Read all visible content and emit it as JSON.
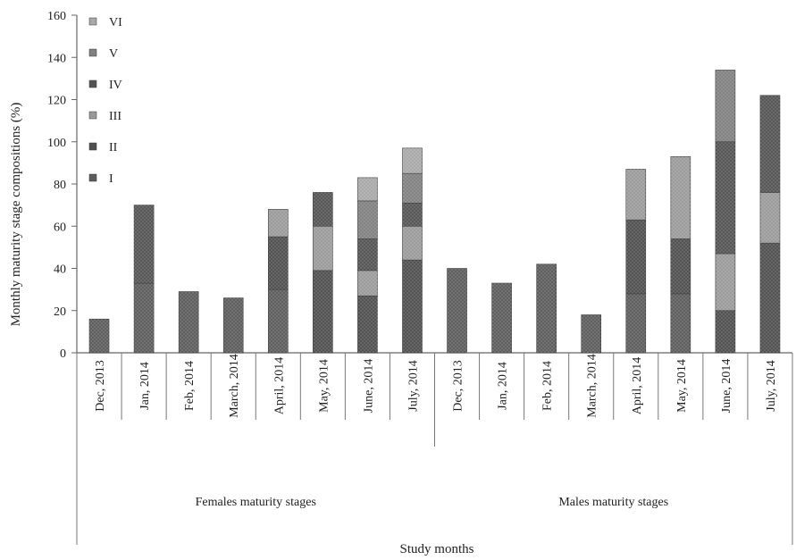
{
  "chart_data": {
    "type": "bar",
    "stacked": true,
    "ylabel": "Monthly maturity stage compositions (%)",
    "xlabel": "Study months",
    "ylim": [
      0,
      160
    ],
    "yticks": [
      0,
      20,
      40,
      60,
      80,
      100,
      120,
      140,
      160
    ],
    "legend_position": "top-left",
    "legend": [
      "VI",
      "V",
      "IV",
      "III",
      "II",
      "I"
    ],
    "groups": [
      {
        "label": "Females maturity stages",
        "categories": [
          "Dec, 2013",
          "Jan, 2014",
          "Feb, 2014",
          "March, 2014",
          "April, 2014",
          "May, 2014",
          "June, 2014",
          "July, 2014"
        ]
      },
      {
        "label": "Males maturity stages",
        "categories": [
          "Dec, 2013",
          "Jan, 2014",
          "Feb, 2014",
          "March, 2014",
          "April, 2014",
          "May, 2014",
          "June, 2014",
          "July, 2014"
        ]
      }
    ],
    "series": [
      {
        "name": "I",
        "color": "#5c5c5c",
        "values": [
          16,
          33,
          29,
          26,
          30,
          0,
          0,
          0,
          40,
          33,
          42,
          18,
          28,
          28,
          0,
          0
        ]
      },
      {
        "name": "II",
        "color": "#4f4f4f",
        "values": [
          0,
          0,
          0,
          0,
          25,
          39,
          27,
          44,
          0,
          0,
          0,
          0,
          35,
          26,
          20,
          52
        ]
      },
      {
        "name": "III",
        "color": "#9a9a9a",
        "values": [
          0,
          0,
          0,
          0,
          13,
          21,
          12,
          16,
          0,
          0,
          0,
          0,
          24,
          39,
          27,
          24
        ]
      },
      {
        "name": "IV",
        "color": "#545454",
        "values": [
          0,
          37,
          0,
          0,
          0,
          16,
          15,
          11,
          0,
          0,
          0,
          0,
          0,
          0,
          53,
          46
        ]
      },
      {
        "name": "V",
        "color": "#808080",
        "values": [
          0,
          0,
          0,
          0,
          0,
          0,
          18,
          14,
          0,
          0,
          0,
          0,
          0,
          0,
          34,
          0
        ]
      },
      {
        "name": "VI",
        "color": "#a8a8a8",
        "values": [
          0,
          0,
          0,
          0,
          0,
          0,
          11,
          12,
          0,
          0,
          0,
          0,
          0,
          0,
          0,
          0
        ]
      }
    ]
  }
}
